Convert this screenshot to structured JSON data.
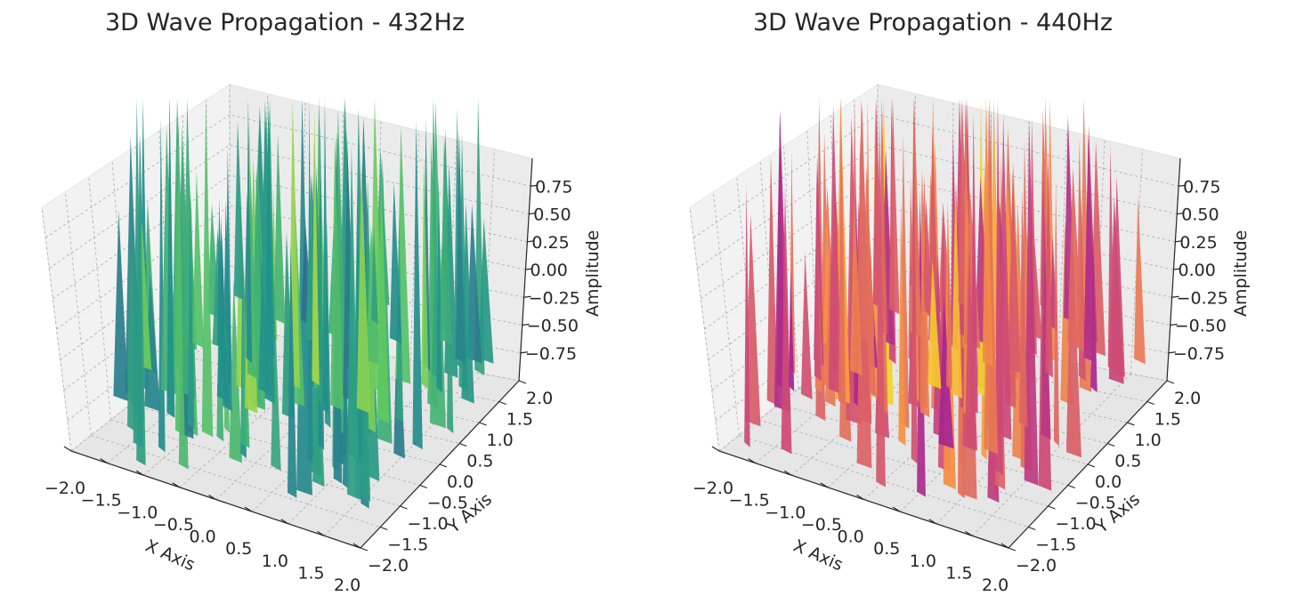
{
  "charts": [
    {
      "title": "3D Wave Propagation - 432Hz",
      "colormap": [
        "#440154",
        "#3b528b",
        "#21918c",
        "#5ec962",
        "#fde725"
      ]
    },
    {
      "title": "3D Wave Propagation - 440Hz",
      "colormap": [
        "#0d0887",
        "#7e03a8",
        "#cc4778",
        "#f89540",
        "#f0f921"
      ]
    }
  ],
  "chart_data": [
    {
      "type": "surface3d",
      "title": "3D Wave Propagation - 432Hz",
      "xlabel": "X Axis",
      "ylabel": "Y Axis",
      "zlabel": "Amplitude",
      "xticks": [
        "−2.0",
        "−1.5",
        "−1.0",
        "−0.5",
        "0.0",
        "0.5",
        "1.0",
        "1.5",
        "2.0"
      ],
      "yticks": [
        "−2.0",
        "−1.5",
        "−1.0",
        "−0.5",
        "0.0",
        "0.5",
        "1.0",
        "1.5",
        "2.0"
      ],
      "zticks": [
        "−0.75",
        "−0.50",
        "−0.25",
        "0.00",
        "0.25",
        "0.50",
        "0.75"
      ],
      "xlim": [
        -2,
        2
      ],
      "ylim": [
        -2,
        2
      ],
      "zlim": [
        -1,
        1
      ],
      "colormap": "viridis",
      "grid": true
    },
    {
      "type": "surface3d",
      "title": "3D Wave Propagation - 440Hz",
      "xlabel": "X Axis",
      "ylabel": "Y Axis",
      "zlabel": "Amplitude",
      "xticks": [
        "−2.0",
        "−1.5",
        "−1.0",
        "−0.5",
        "0.0",
        "0.5",
        "1.0",
        "1.5",
        "2.0"
      ],
      "yticks": [
        "−2.0",
        "−1.5",
        "−1.0",
        "−0.5",
        "0.0",
        "0.5",
        "1.0",
        "1.5",
        "2.0"
      ],
      "zticks": [
        "−0.75",
        "−0.50",
        "−0.25",
        "0.00",
        "0.25",
        "0.50",
        "0.75"
      ],
      "xlim": [
        -2,
        2
      ],
      "ylim": [
        -2,
        2
      ],
      "zlim": [
        -1,
        1
      ],
      "colormap": "plasma",
      "grid": true
    }
  ]
}
